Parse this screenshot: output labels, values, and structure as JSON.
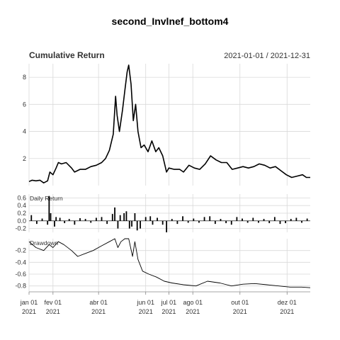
{
  "title": "second_Invlnef_bottom4",
  "date_range_label": "2021-01-01 / 2021-12-31",
  "colors": {
    "line": "#000000",
    "grid": "#d9d9d9",
    "text": "#333333"
  },
  "chart_data": [
    {
      "type": "line",
      "title": "Cumulative Return",
      "yticks": [
        "2",
        "4",
        "6",
        "8"
      ],
      "yvals": [
        2,
        4,
        6,
        8
      ],
      "ylim": [
        0,
        9
      ],
      "x_start": "2021-01-01",
      "x_end": "2021-12-31",
      "points": [
        [
          "2021-01-01",
          0.3
        ],
        [
          "2021-01-05",
          0.4
        ],
        [
          "2021-01-10",
          0.35
        ],
        [
          "2021-01-15",
          0.4
        ],
        [
          "2021-01-20",
          0.2
        ],
        [
          "2021-01-25",
          0.35
        ],
        [
          "2021-01-28",
          1.0
        ],
        [
          "2021-02-01",
          0.8
        ],
        [
          "2021-02-05",
          1.3
        ],
        [
          "2021-02-08",
          1.7
        ],
        [
          "2021-02-12",
          1.6
        ],
        [
          "2021-02-18",
          1.7
        ],
        [
          "2021-02-25",
          1.3
        ],
        [
          "2021-03-01",
          1.0
        ],
        [
          "2021-03-08",
          1.2
        ],
        [
          "2021-03-15",
          1.2
        ],
        [
          "2021-03-22",
          1.4
        ],
        [
          "2021-03-29",
          1.5
        ],
        [
          "2021-04-05",
          1.7
        ],
        [
          "2021-04-10",
          2.0
        ],
        [
          "2021-04-15",
          2.6
        ],
        [
          "2021-04-20",
          3.8
        ],
        [
          "2021-04-23",
          6.6
        ],
        [
          "2021-04-25",
          5.2
        ],
        [
          "2021-04-28",
          4.0
        ],
        [
          "2021-05-02",
          5.6
        ],
        [
          "2021-05-05",
          7.0
        ],
        [
          "2021-05-08",
          8.4
        ],
        [
          "2021-05-10",
          8.9
        ],
        [
          "2021-05-13",
          7.5
        ],
        [
          "2021-05-16",
          4.8
        ],
        [
          "2021-05-19",
          6.0
        ],
        [
          "2021-05-22",
          4.0
        ],
        [
          "2021-05-26",
          2.8
        ],
        [
          "2021-05-30",
          3.0
        ],
        [
          "2021-06-04",
          2.5
        ],
        [
          "2021-06-09",
          3.3
        ],
        [
          "2021-06-14",
          2.5
        ],
        [
          "2021-06-18",
          2.8
        ],
        [
          "2021-06-23",
          2.2
        ],
        [
          "2021-06-28",
          1.0
        ],
        [
          "2021-07-01",
          1.3
        ],
        [
          "2021-07-08",
          1.2
        ],
        [
          "2021-07-15",
          1.2
        ],
        [
          "2021-07-20",
          1.0
        ],
        [
          "2021-07-27",
          1.5
        ],
        [
          "2021-08-03",
          1.3
        ],
        [
          "2021-08-10",
          1.2
        ],
        [
          "2021-08-17",
          1.6
        ],
        [
          "2021-08-24",
          2.2
        ],
        [
          "2021-08-31",
          1.9
        ],
        [
          "2021-09-07",
          1.7
        ],
        [
          "2021-09-14",
          1.7
        ],
        [
          "2021-09-21",
          1.2
        ],
        [
          "2021-09-28",
          1.3
        ],
        [
          "2021-10-05",
          1.4
        ],
        [
          "2021-10-12",
          1.3
        ],
        [
          "2021-10-19",
          1.4
        ],
        [
          "2021-10-26",
          1.6
        ],
        [
          "2021-11-02",
          1.5
        ],
        [
          "2021-11-09",
          1.3
        ],
        [
          "2021-11-16",
          1.4
        ],
        [
          "2021-11-23",
          1.1
        ],
        [
          "2021-11-30",
          0.8
        ],
        [
          "2021-12-07",
          0.6
        ],
        [
          "2021-12-14",
          0.7
        ],
        [
          "2021-12-21",
          0.8
        ],
        [
          "2021-12-26",
          0.6
        ],
        [
          "2021-12-31",
          0.6
        ]
      ]
    },
    {
      "type": "bar",
      "title": "Daily Return",
      "yticks": [
        "0.6",
        "0.4",
        "0.2",
        "0.0",
        "-0.2"
      ],
      "yvals": [
        0.6,
        0.4,
        0.2,
        0.0,
        -0.2
      ],
      "ylim": [
        -0.3,
        0.7
      ],
      "x_start": "2021-01-01",
      "x_end": "2021-12-31",
      "points": [
        [
          "2021-01-04",
          0.15
        ],
        [
          "2021-01-11",
          -0.08
        ],
        [
          "2021-01-18",
          0.06
        ],
        [
          "2021-01-25",
          -0.1
        ],
        [
          "2021-01-27",
          0.65
        ],
        [
          "2021-01-29",
          0.2
        ],
        [
          "2021-02-03",
          -0.15
        ],
        [
          "2021-02-05",
          0.1
        ],
        [
          "2021-02-10",
          0.08
        ],
        [
          "2021-02-16",
          -0.06
        ],
        [
          "2021-02-22",
          0.05
        ],
        [
          "2021-03-01",
          -0.1
        ],
        [
          "2021-03-08",
          0.07
        ],
        [
          "2021-03-15",
          0.05
        ],
        [
          "2021-03-22",
          -0.05
        ],
        [
          "2021-03-29",
          0.08
        ],
        [
          "2021-04-05",
          0.1
        ],
        [
          "2021-04-12",
          -0.08
        ],
        [
          "2021-04-19",
          0.18
        ],
        [
          "2021-04-22",
          0.35
        ],
        [
          "2021-04-26",
          -0.2
        ],
        [
          "2021-04-29",
          0.15
        ],
        [
          "2021-05-04",
          0.2
        ],
        [
          "2021-05-07",
          0.25
        ],
        [
          "2021-05-11",
          -0.2
        ],
        [
          "2021-05-14",
          -0.15
        ],
        [
          "2021-05-18",
          0.2
        ],
        [
          "2021-05-21",
          -0.25
        ],
        [
          "2021-05-25",
          -0.2
        ],
        [
          "2021-06-01",
          0.1
        ],
        [
          "2021-06-07",
          0.12
        ],
        [
          "2021-06-10",
          -0.1
        ],
        [
          "2021-06-16",
          0.08
        ],
        [
          "2021-06-23",
          -0.1
        ],
        [
          "2021-06-28",
          -0.3
        ],
        [
          "2021-07-05",
          0.05
        ],
        [
          "2021-07-12",
          -0.08
        ],
        [
          "2021-07-19",
          0.12
        ],
        [
          "2021-07-26",
          -0.05
        ],
        [
          "2021-08-02",
          0.06
        ],
        [
          "2021-08-09",
          -0.05
        ],
        [
          "2021-08-16",
          0.1
        ],
        [
          "2021-08-23",
          0.12
        ],
        [
          "2021-08-30",
          -0.08
        ],
        [
          "2021-09-06",
          0.05
        ],
        [
          "2021-09-13",
          -0.06
        ],
        [
          "2021-09-20",
          -0.1
        ],
        [
          "2021-09-27",
          0.1
        ],
        [
          "2021-10-04",
          0.06
        ],
        [
          "2021-10-11",
          -0.05
        ],
        [
          "2021-10-18",
          0.08
        ],
        [
          "2021-10-25",
          -0.05
        ],
        [
          "2021-11-01",
          0.05
        ],
        [
          "2021-11-08",
          -0.06
        ],
        [
          "2021-11-15",
          0.1
        ],
        [
          "2021-11-22",
          -0.08
        ],
        [
          "2021-11-29",
          -0.06
        ],
        [
          "2021-12-06",
          0.05
        ],
        [
          "2021-12-13",
          0.08
        ],
        [
          "2021-12-20",
          -0.05
        ],
        [
          "2021-12-27",
          0.06
        ]
      ]
    },
    {
      "type": "line",
      "title": "Drawdown",
      "yticks": [
        "-0.2",
        "-0.4",
        "-0.6",
        "-0.8"
      ],
      "yvals": [
        -0.2,
        -0.4,
        -0.6,
        -0.8
      ],
      "ylim": [
        -0.9,
        0.0
      ],
      "x_start": "2021-01-01",
      "x_end": "2021-12-31",
      "points": [
        [
          "2021-01-01",
          -0.05
        ],
        [
          "2021-01-10",
          -0.15
        ],
        [
          "2021-01-20",
          -0.2
        ],
        [
          "2021-01-27",
          -0.1
        ],
        [
          "2021-02-01",
          -0.15
        ],
        [
          "2021-02-08",
          -0.05
        ],
        [
          "2021-02-15",
          -0.1
        ],
        [
          "2021-02-25",
          -0.2
        ],
        [
          "2021-03-05",
          -0.3
        ],
        [
          "2021-03-15",
          -0.25
        ],
        [
          "2021-03-25",
          -0.2
        ],
        [
          "2021-04-05",
          -0.12
        ],
        [
          "2021-04-15",
          -0.05
        ],
        [
          "2021-04-22",
          0.0
        ],
        [
          "2021-04-26",
          -0.15
        ],
        [
          "2021-04-30",
          -0.05
        ],
        [
          "2021-05-05",
          0.0
        ],
        [
          "2021-05-10",
          0.0
        ],
        [
          "2021-05-15",
          -0.3
        ],
        [
          "2021-05-18",
          -0.05
        ],
        [
          "2021-05-22",
          -0.35
        ],
        [
          "2021-05-28",
          -0.55
        ],
        [
          "2021-06-05",
          -0.6
        ],
        [
          "2021-06-15",
          -0.65
        ],
        [
          "2021-06-25",
          -0.72
        ],
        [
          "2021-07-05",
          -0.75
        ],
        [
          "2021-07-20",
          -0.78
        ],
        [
          "2021-08-05",
          -0.8
        ],
        [
          "2021-08-20",
          -0.72
        ],
        [
          "2021-09-05",
          -0.75
        ],
        [
          "2021-09-20",
          -0.8
        ],
        [
          "2021-10-05",
          -0.77
        ],
        [
          "2021-10-20",
          -0.76
        ],
        [
          "2021-11-05",
          -0.78
        ],
        [
          "2021-11-20",
          -0.8
        ],
        [
          "2021-12-05",
          -0.82
        ],
        [
          "2021-12-20",
          -0.82
        ],
        [
          "2021-12-31",
          -0.83
        ]
      ]
    }
  ],
  "x_axis": {
    "ticks": [
      {
        "date": "2021-01-01",
        "label": "jan 01",
        "year": "2021"
      },
      {
        "date": "2021-02-01",
        "label": "fev 01",
        "year": "2021"
      },
      {
        "date": "2021-04-01",
        "label": "abr 01",
        "year": "2021"
      },
      {
        "date": "2021-06-01",
        "label": "jun 01",
        "year": "2021"
      },
      {
        "date": "2021-07-01",
        "label": "jul 01",
        "year": "2021"
      },
      {
        "date": "2021-08-01",
        "label": "ago 01",
        "year": "2021"
      },
      {
        "date": "2021-10-01",
        "label": "out 01",
        "year": "2021"
      },
      {
        "date": "2021-12-01",
        "label": "dez 01",
        "year": "2021"
      }
    ]
  }
}
